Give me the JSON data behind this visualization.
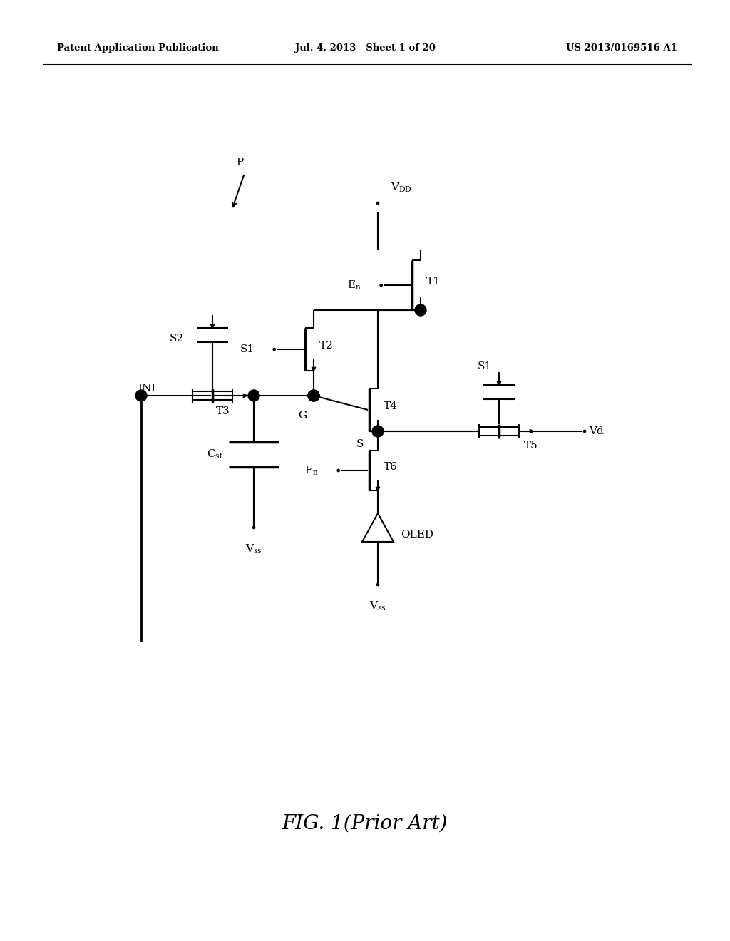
{
  "title": "FIG. 1(Prior Art)",
  "header_left": "Patent Application Publication",
  "header_mid": "Jul. 4, 2013   Sheet 1 of 20",
  "header_right": "US 2013/0169516 A1",
  "bg_color": "#ffffff",
  "lw": 1.5,
  "lw_thick": 2.5,
  "dot_r": 0.055,
  "oc_r": 0.065
}
